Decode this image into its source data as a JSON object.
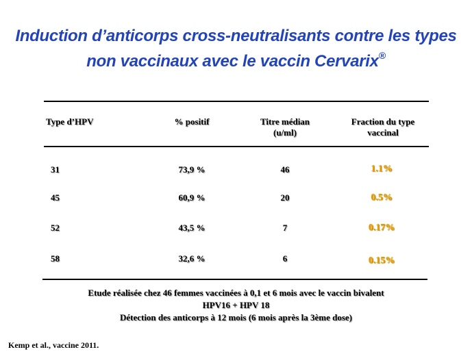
{
  "title": {
    "line1": "Induction d’anticorps cross-neutralisants contre les types",
    "line2": "non vaccinaux avec le vaccin Cervarix",
    "sup": "®"
  },
  "table": {
    "headers": {
      "type": "Type d’HPV",
      "positive": "% positif",
      "titer_line1": "Titre médian",
      "titer_line2": "(u/ml)",
      "fraction_line1": "Fraction du type",
      "fraction_line2": "vaccinal"
    },
    "rows": [
      {
        "type": "31",
        "positive": "73,9 %",
        "titer": "46",
        "fraction": "1.1%"
      },
      {
        "type": "45",
        "positive": "60,9 %",
        "titer": "20",
        "fraction": "0.5%"
      },
      {
        "type": "52",
        "positive": "43,5 %",
        "titer": "7",
        "fraction": "0.17%"
      },
      {
        "type": "58",
        "positive": "32,6 %",
        "titer": "6",
        "fraction": "0.15%"
      }
    ]
  },
  "note": {
    "line1": "Etude réalisée chez 46 femmes vaccinées à 0,1 et 6 mois avec le vaccin bivalent",
    "line2": "HPV16 + HPV 18",
    "line3": "Détection des anticorps à 12 mois (6 mois après la 3ème dose)"
  },
  "reference": "Kemp et al., vaccine 2011.",
  "colors": {
    "title": "#2244b8",
    "fraction": "#e8a000"
  }
}
